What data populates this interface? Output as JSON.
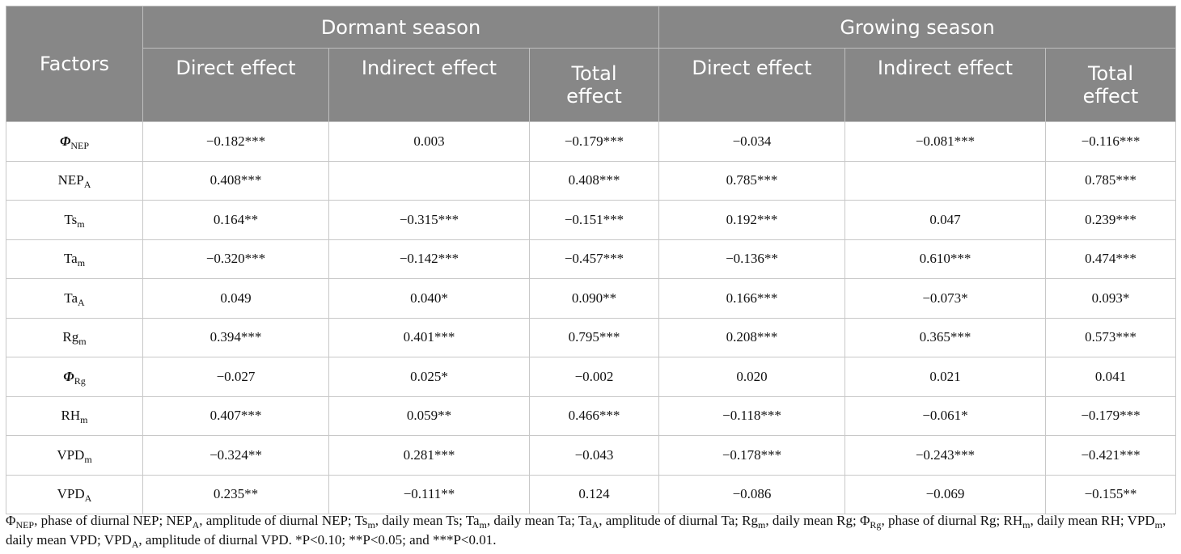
{
  "header": {
    "factors": "Factors",
    "dormant": "Dormant season",
    "growing": "Growing season",
    "direct": "Direct effect",
    "indirect": "Indirect effect",
    "total": "Total effect"
  },
  "rows": [
    {
      "sym": "Φ",
      "sub": "NEP",
      "italic": true,
      "d": [
        "−0.182***",
        "0.003",
        "−0.179***"
      ],
      "g": [
        "−0.034",
        "−0.081***",
        "−0.116***"
      ]
    },
    {
      "sym": "NEP",
      "sub": "A",
      "italic": false,
      "d": [
        "0.408***",
        "",
        "0.408***"
      ],
      "g": [
        "0.785***",
        "",
        "0.785***"
      ]
    },
    {
      "sym": "Ts",
      "sub": "m",
      "italic": false,
      "d": [
        "0.164**",
        "−0.315***",
        "−0.151***"
      ],
      "g": [
        "0.192***",
        "0.047",
        "0.239***"
      ]
    },
    {
      "sym": "Ta",
      "sub": "m",
      "italic": false,
      "d": [
        "−0.320***",
        "−0.142***",
        "−0.457***"
      ],
      "g": [
        "−0.136**",
        "0.610***",
        "0.474***"
      ]
    },
    {
      "sym": "Ta",
      "sub": "A",
      "italic": false,
      "d": [
        "0.049",
        "0.040*",
        "0.090**"
      ],
      "g": [
        "0.166***",
        "−0.073*",
        "0.093*"
      ]
    },
    {
      "sym": "Rg",
      "sub": "m",
      "italic": false,
      "d": [
        "0.394***",
        "0.401***",
        "0.795***"
      ],
      "g": [
        "0.208***",
        "0.365***",
        "0.573***"
      ]
    },
    {
      "sym": "Φ",
      "sub": "Rg",
      "italic": true,
      "d": [
        "−0.027",
        "0.025*",
        "−0.002"
      ],
      "g": [
        "0.020",
        "0.021",
        "0.041"
      ]
    },
    {
      "sym": "RH",
      "sub": "m",
      "italic": false,
      "d": [
        "0.407***",
        "0.059**",
        "0.466***"
      ],
      "g": [
        "−0.118***",
        "−0.061*",
        "−0.179***"
      ]
    },
    {
      "sym": "VPD",
      "sub": "m",
      "italic": false,
      "d": [
        "−0.324**",
        "0.281***",
        "−0.043"
      ],
      "g": [
        "−0.178***",
        "−0.243***",
        "−0.421***"
      ]
    },
    {
      "sym": "VPD",
      "sub": "A",
      "italic": false,
      "d": [
        "0.235**",
        "−0.111**",
        "0.124"
      ],
      "g": [
        "−0.086",
        "−0.069",
        "−0.155**"
      ]
    }
  ],
  "footnote": [
    {
      "s": "Φ",
      "b": "NEP",
      "t": ", phase of diurnal NEP; "
    },
    {
      "s": "NEP",
      "b": "A",
      "t": ", amplitude of diurnal NEP; "
    },
    {
      "s": "Ts",
      "b": "m",
      "t": ", daily mean Ts; "
    },
    {
      "s": "Ta",
      "b": "m",
      "t": ", daily mean Ta; "
    },
    {
      "s": "Ta",
      "b": "A",
      "t": ", amplitude of diurnal Ta; "
    },
    {
      "s": "Rg",
      "b": "m",
      "t": ", daily mean Rg; "
    },
    {
      "s": "Φ",
      "b": "Rg",
      "t": ", phase of diurnal Rg; "
    },
    {
      "s": "RH",
      "b": "m",
      "t": ", daily mean RH; "
    },
    {
      "s": "VPD",
      "b": "m",
      "t": ", daily mean VPD; "
    },
    {
      "s": "VPD",
      "b": "A",
      "t": ", amplitude of diurnal VPD. *P<0.10; **P<0.05; and ***P<0.01."
    }
  ]
}
